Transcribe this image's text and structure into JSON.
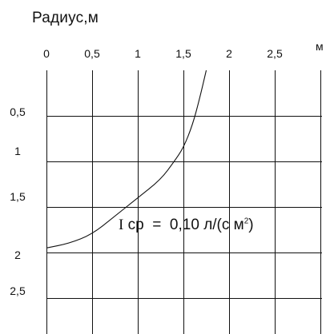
{
  "chart_data": {
    "type": "line",
    "title": "Радиус,м",
    "xlabel": "м",
    "x_ticks": [
      "0",
      "0,5",
      "1",
      "1,5",
      "2",
      "2,5"
    ],
    "y_ticks": [
      "0,5",
      "1",
      "1,5",
      "2",
      "2,5"
    ],
    "xlim": [
      0,
      3.0
    ],
    "ylim": [
      0,
      3.0
    ],
    "y_inverted": true,
    "grid": true,
    "series": [
      {
        "points": [
          [
            0.0,
            1.95
          ],
          [
            0.25,
            1.9
          ],
          [
            0.5,
            1.8
          ],
          [
            0.75,
            1.6
          ],
          [
            1.0,
            1.4
          ],
          [
            1.25,
            1.2
          ],
          [
            1.4,
            1.0
          ],
          [
            1.5,
            0.85
          ],
          [
            1.6,
            0.6
          ],
          [
            1.68,
            0.3
          ],
          [
            1.75,
            0.0
          ]
        ]
      }
    ],
    "annotation": {
      "symbol": "I",
      "subscript": "ср",
      "equals": "=",
      "value": "0,10",
      "unit_main": "л/(с  м",
      "unit_exp": "2",
      "unit_close": ")"
    }
  },
  "colors": {
    "axis": "#111111",
    "grid": "#111111",
    "line": "#111111"
  }
}
